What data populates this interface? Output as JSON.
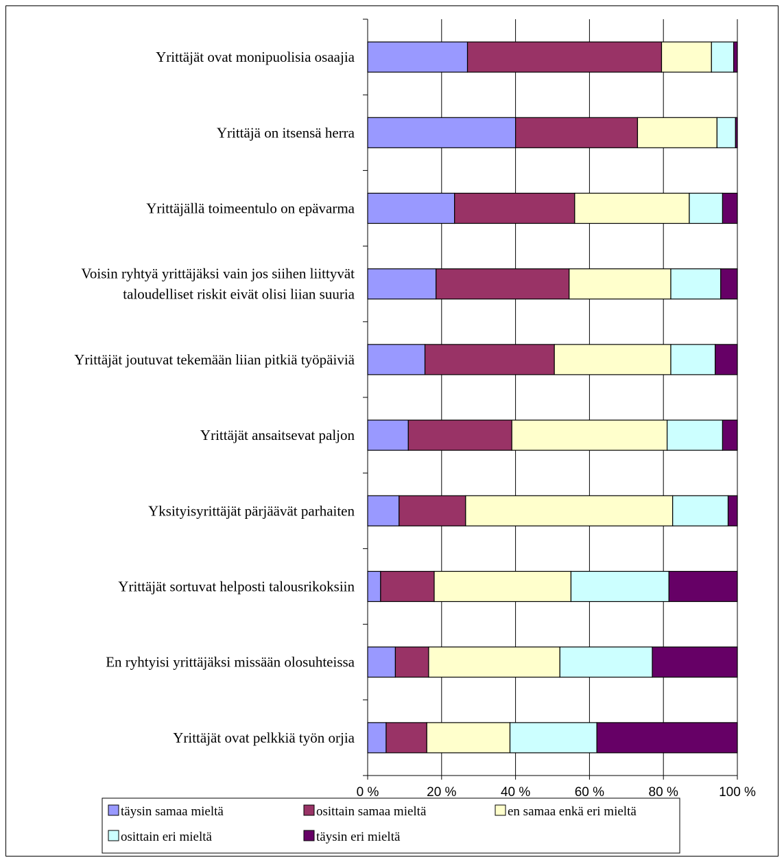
{
  "chart_data": {
    "type": "bar",
    "orientation": "horizontal",
    "stacked": "percent",
    "categories": [
      [
        "Yrittäjät ovat monipuolisia osaajia"
      ],
      [
        "Yrittäjä on itsensä herra"
      ],
      [
        "Yrittäjällä toimeentulo on epävarma"
      ],
      [
        "Voisin ryhtyä yrittäjäksi vain jos siihen liittyvät",
        "taloudelliset riskit eivät olisi liian suuria"
      ],
      [
        "Yrittäjät joutuvat tekemään liian pitkiä työpäiviä"
      ],
      [
        "Yrittäjät ansaitsevat paljon"
      ],
      [
        "Yksityisyrittäjät pärjäävät parhaiten"
      ],
      [
        "Yrittäjät sortuvat helposti talousrikoksiin"
      ],
      [
        "En ryhtyisi yrittäjäksi missään olosuhteissa"
      ],
      [
        "Yrittäjät ovat pelkkiä työn orjia"
      ]
    ],
    "series": [
      {
        "name": "täysin samaa mieltä",
        "color": "#9999FF",
        "values": [
          27,
          40,
          23.5,
          18.5,
          15.5,
          11,
          8.5,
          3.5,
          7.5,
          5
        ]
      },
      {
        "name": "osittain samaa mieltä",
        "color": "#993366",
        "values": [
          52.5,
          33,
          32.5,
          36,
          35,
          28,
          18,
          14.5,
          9,
          11
        ]
      },
      {
        "name": "en samaa enkä eri mieltä",
        "color": "#FFFFCC",
        "values": [
          13.5,
          21.5,
          31,
          27.5,
          31.5,
          42,
          56,
          37,
          35.5,
          22.5
        ]
      },
      {
        "name": "osittain eri mieltä",
        "color": "#CCFFFF",
        "values": [
          6,
          5,
          9,
          13.5,
          12,
          15,
          15,
          26.5,
          25,
          23.5
        ]
      },
      {
        "name": "täysin eri mieltä",
        "color": "#660066",
        "values": [
          1,
          0.5,
          4,
          4.5,
          6,
          4,
          2.5,
          18.5,
          23,
          38
        ]
      }
    ],
    "x_ticks": [
      "0 %",
      "20 %",
      "40 %",
      "60 %",
      "80 %",
      "100 %"
    ],
    "xlim": [
      0,
      100
    ],
    "grid": true,
    "legend_position": "bottom"
  }
}
